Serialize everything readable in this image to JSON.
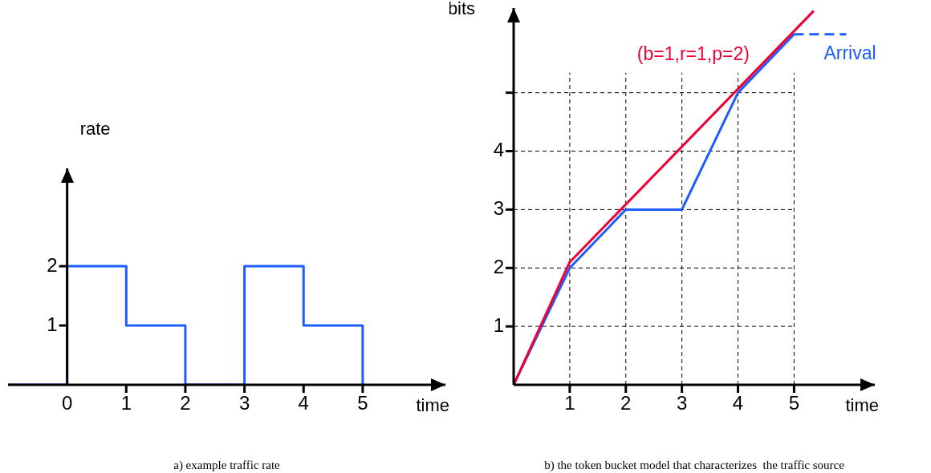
{
  "chart_data": [
    {
      "type": "step",
      "title": "a) example traffic rate",
      "xlabel": "time",
      "ylabel": "rate",
      "x": [
        -1,
        0,
        1,
        2,
        3,
        4,
        5
      ],
      "xlim": [
        -1,
        6.4
      ],
      "ylim": [
        0,
        3.65
      ],
      "xticks": [
        0,
        1,
        2,
        3,
        4,
        5
      ],
      "yticks": [
        1,
        2
      ],
      "marker": "none",
      "legend": false,
      "series": [
        {
          "color": "#1f5cff",
          "values": [
            0,
            2,
            1,
            0,
            2,
            1,
            0
          ]
        }
      ]
    },
    {
      "type": "line",
      "title": "b) the token bucket model that characterizes  the traffic source",
      "xlabel": "time",
      "ylabel": "bits",
      "xlim": [
        0,
        6.44
      ],
      "ylim": [
        0,
        6.45
      ],
      "xticks": [
        1,
        2,
        3,
        4,
        5
      ],
      "yticks": [
        1,
        2,
        3,
        4,
        {
          "value": 5,
          "label": null
        }
      ],
      "grid": true,
      "marker": "none",
      "legend": false,
      "series": [
        {
          "name": "(b=1,r=1,p=2)",
          "color": "#ee0033",
          "x": [
            0,
            1,
            5.35
          ],
          "values": [
            0,
            2.1,
            6.4
          ]
        },
        {
          "name": "Arrival",
          "color": "#1f5cff",
          "x": [
            0,
            1,
            2,
            3,
            4,
            5
          ],
          "values": [
            0,
            2,
            3,
            3,
            5,
            6
          ]
        },
        {
          "color": "#1f5cff",
          "line_style": "dashed",
          "x": [
            5,
            5.93
          ],
          "values": [
            6,
            6
          ]
        }
      ]
    }
  ]
}
